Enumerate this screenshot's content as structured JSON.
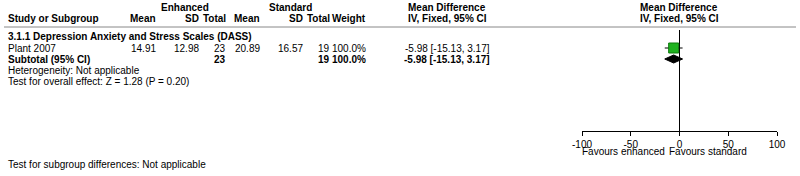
{
  "table": {
    "header": {
      "groups": [
        "Enhanced",
        "Standard",
        "Mean Difference",
        "Mean Difference"
      ],
      "columns": [
        "Study or Subgroup",
        "Mean",
        "SD",
        "Total",
        "Mean",
        "SD",
        "Total",
        "Weight",
        "IV, Fixed, 95% CI",
        "IV, Fixed, 95% CI"
      ]
    },
    "subgroup": "3.1.1 Depression Anxiety and Stress Scales (DASS)",
    "rows": [
      [
        "Plant 2007",
        "14.91",
        "12.98",
        "23",
        "20.89",
        "16.57",
        "19",
        "100.0%",
        "-5.98 [-15.13, 3.17]"
      ],
      [
        "Subtotal (95% CI)",
        null,
        null,
        "23",
        null,
        null,
        "19",
        "100.0%",
        "-5.98 [-15.13, 3.17]"
      ]
    ],
    "notes": [
      "Heterogeneity: Not applicable",
      "Test for overall effect: Z = 1.28 (P = 0.20)"
    ],
    "footer": "Test for subgroup differences: Not applicable"
  },
  "chart_data": {
    "type": "forest",
    "points": [
      {
        "mean": -5.98,
        "ci": [
          -15.13,
          3.17
        ],
        "marker": "square",
        "color": "#1fb21f"
      },
      {
        "mean": -5.98,
        "ci": [
          -15.13,
          3.17
        ],
        "marker": "diamond",
        "color": "#000000"
      }
    ],
    "xlim": [
      -100,
      100
    ],
    "xticks": [
      -100,
      -50,
      0,
      50,
      100
    ],
    "null_line": 0,
    "grid": false,
    "labels": {
      "left": "Favours enhanced",
      "right": "Favours standard"
    }
  }
}
